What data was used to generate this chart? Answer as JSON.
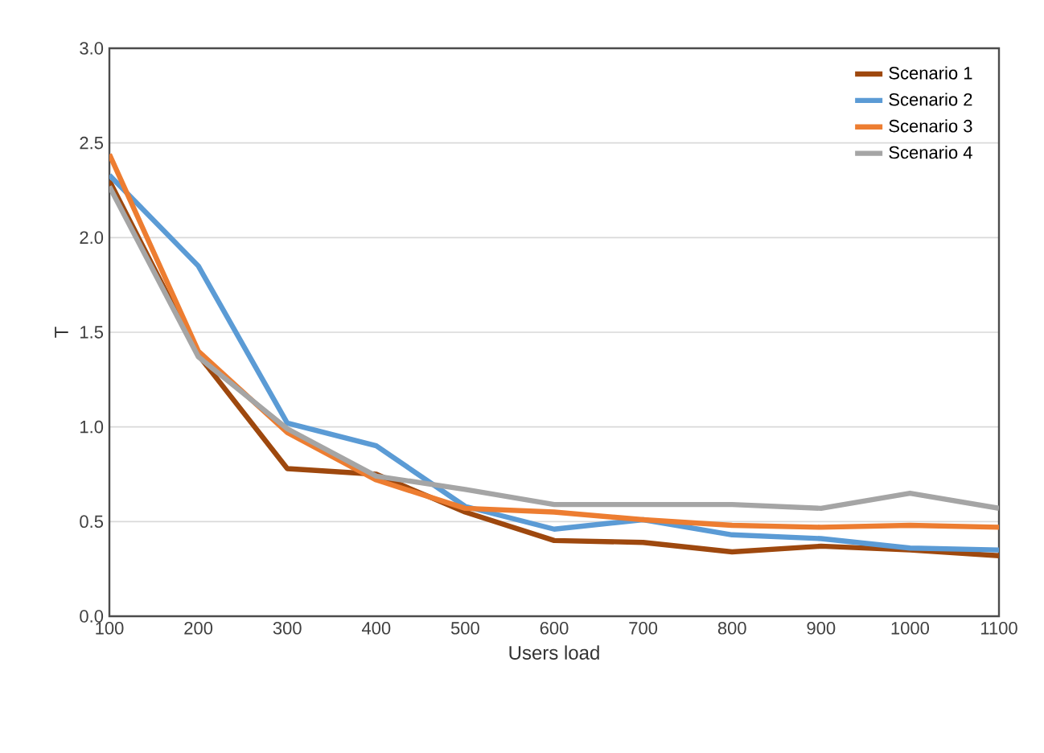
{
  "chart_data": {
    "type": "line",
    "xlabel": "Users load",
    "ylabel": "T",
    "x": [
      100,
      200,
      300,
      400,
      500,
      600,
      700,
      800,
      900,
      1000,
      1100
    ],
    "series": [
      {
        "name": "Scenario 1",
        "color": "#9e480e",
        "values": [
          2.3,
          1.38,
          0.78,
          0.75,
          0.55,
          0.4,
          0.39,
          0.34,
          0.37,
          0.35,
          0.32
        ]
      },
      {
        "name": "Scenario 2",
        "color": "#5b9bd5",
        "values": [
          2.33,
          1.85,
          1.02,
          0.9,
          0.58,
          0.46,
          0.51,
          0.43,
          0.41,
          0.36,
          0.35
        ]
      },
      {
        "name": "Scenario 3",
        "color": "#ed7d31",
        "values": [
          2.44,
          1.4,
          0.97,
          0.72,
          0.57,
          0.55,
          0.51,
          0.48,
          0.47,
          0.48,
          0.47
        ]
      },
      {
        "name": "Scenario 4",
        "color": "#a5a5a5",
        "values": [
          2.27,
          1.37,
          0.99,
          0.74,
          0.67,
          0.59,
          0.59,
          0.59,
          0.57,
          0.65,
          0.57
        ]
      }
    ],
    "xlim": [
      100,
      1100
    ],
    "xticks": [
      100,
      200,
      300,
      400,
      500,
      600,
      700,
      800,
      900,
      1000,
      1100
    ],
    "ylim": [
      0,
      3
    ],
    "yticks": [
      {
        "value": 0,
        "label": "0.0"
      },
      {
        "value": 0.5,
        "label": "0.5"
      },
      {
        "value": 1,
        "label": "1.0"
      },
      {
        "value": 1.5,
        "label": "1.5"
      },
      {
        "value": 2,
        "label": "2.0"
      },
      {
        "value": 2.5,
        "label": "2.5"
      },
      {
        "value": 3,
        "label": "3.0"
      }
    ],
    "grid": "y",
    "legend": "top right",
    "marker": "none",
    "line_style": "solid"
  }
}
